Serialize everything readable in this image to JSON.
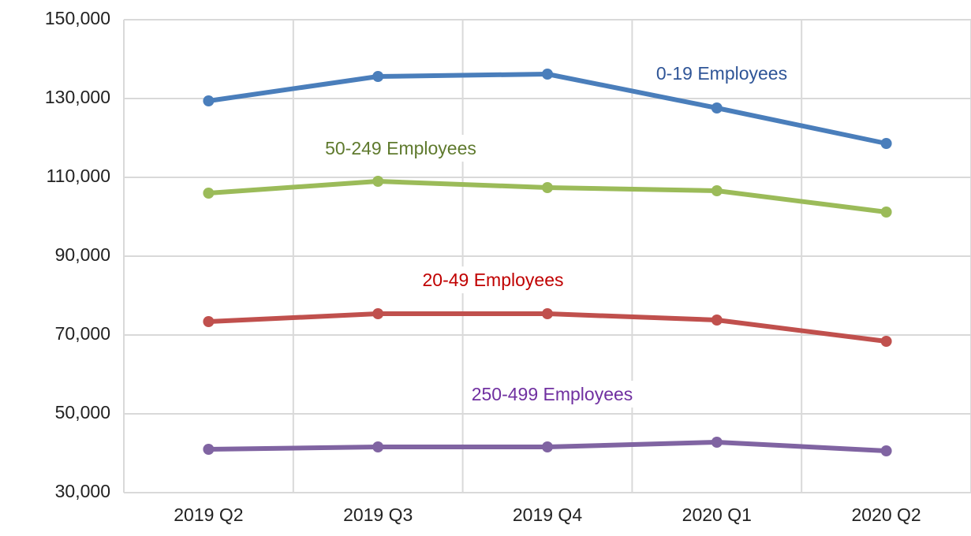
{
  "chart_data": {
    "type": "line",
    "categories": [
      "2019 Q2",
      "2019 Q3",
      "2019 Q4",
      "2020 Q1",
      "2020 Q2"
    ],
    "series": [
      {
        "name": "0-19 Employees",
        "color": "#4a7ebb",
        "label_color": "#2f5597",
        "values": [
          129400,
          135600,
          136200,
          127600,
          118600
        ]
      },
      {
        "name": "50-249 Employees",
        "color": "#9bbb59",
        "label_color": "#5f7a2e",
        "values": [
          106000,
          109000,
          107400,
          106600,
          101200
        ]
      },
      {
        "name": "20-49 Employees",
        "color": "#c0504d",
        "label_color": "#c00000",
        "values": [
          73400,
          75400,
          75400,
          73800,
          68400
        ]
      },
      {
        "name": "250-499 Employees",
        "color": "#8064a2",
        "label_color": "#7030a0",
        "values": [
          41000,
          41600,
          41600,
          42800,
          40600
        ]
      }
    ],
    "ylim": [
      30000,
      150000
    ],
    "yticks": [
      {
        "value": 30000,
        "label": "30,000"
      },
      {
        "value": 50000,
        "label": "50,000"
      },
      {
        "value": 70000,
        "label": "70,000"
      },
      {
        "value": 90000,
        "label": "90,000"
      },
      {
        "value": 110000,
        "label": "110,000"
      },
      {
        "value": 130000,
        "label": "130,000"
      },
      {
        "value": 150000,
        "label": "150,000"
      }
    ],
    "grid": true
  }
}
